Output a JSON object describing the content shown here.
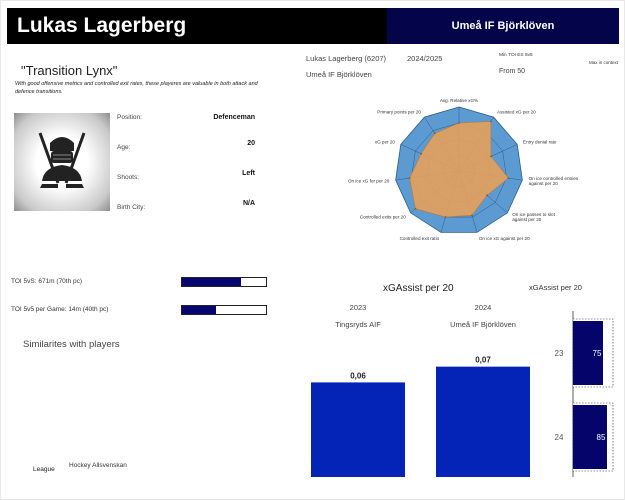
{
  "header": {
    "player_name": "Lukas Lagerberg",
    "team_name": "Umeå IF Björklöven"
  },
  "profile": {
    "nickname": "\"Transition Lynx\"",
    "description": "With good offensive metrics and controlled exit rates, these playeres are valuable in both attack and defence transitions.",
    "image_icon": "hockey-player-icon",
    "fields": [
      {
        "label": "Position:",
        "value": "Defenceman"
      },
      {
        "label": "Age:",
        "value": "20"
      },
      {
        "label": "Shoots:",
        "value": "Left"
      },
      {
        "label": "Birth City:",
        "value": "N/A"
      }
    ]
  },
  "toi": [
    {
      "label": "TOI 5vS: 671m (70th pc)",
      "percentile": 70
    },
    {
      "label": "TOI 5v5 per Game: 14m (40th pc)",
      "percentile": 40
    }
  ],
  "similarities": {
    "title": "Similarites with players",
    "league_label": "League",
    "league_value": "Hockey Allsvenskan"
  },
  "meta": {
    "player_id": "Lukas Lagerberg (6207)",
    "season": "2024/2025",
    "team": "Umeå IF Björklöven",
    "min_toi_label": "Min TOI ES 5v5",
    "min_toi_value": "From 50",
    "max_context_label": "Max in context"
  },
  "radar": {
    "axes": [
      "Avg. Relative xG%",
      "Assisted xG per 20",
      "Entry denial rate",
      "On ice controlled entries against per 20",
      "On ice passes to slot against per 20",
      "On ice xG against per 20",
      "Controlled exit ratio",
      "Controlled exits per 20",
      "On ice xG for per 20",
      "xG per 20",
      "Primary points per 20"
    ],
    "values": [
      0.75,
      0.92,
      0.55,
      0.78,
      0.58,
      0.72,
      0.75,
      0.9,
      0.78,
      0.65,
      0.7
    ],
    "colors": {
      "outer": "#5b9bd1",
      "player": "#e3a05c",
      "ring": "#2d5b86"
    }
  },
  "chart_data": [
    {
      "type": "bar",
      "title": "xGAssist per 20",
      "categories": [
        "2023",
        "2024"
      ],
      "teams": [
        "Tingsryds AIF",
        "Umeå IF Björklöven"
      ],
      "values": [
        0.06,
        0.07
      ],
      "value_labels": [
        "0,06",
        "0,07"
      ],
      "ylim": [
        0,
        0.085
      ],
      "color": "#0424b8"
    },
    {
      "type": "bar",
      "title": "xGAssist per 20",
      "categories": [
        "23",
        "24"
      ],
      "values": [
        75,
        85
      ],
      "ylim": [
        0,
        100
      ],
      "color": "#04046a"
    }
  ]
}
